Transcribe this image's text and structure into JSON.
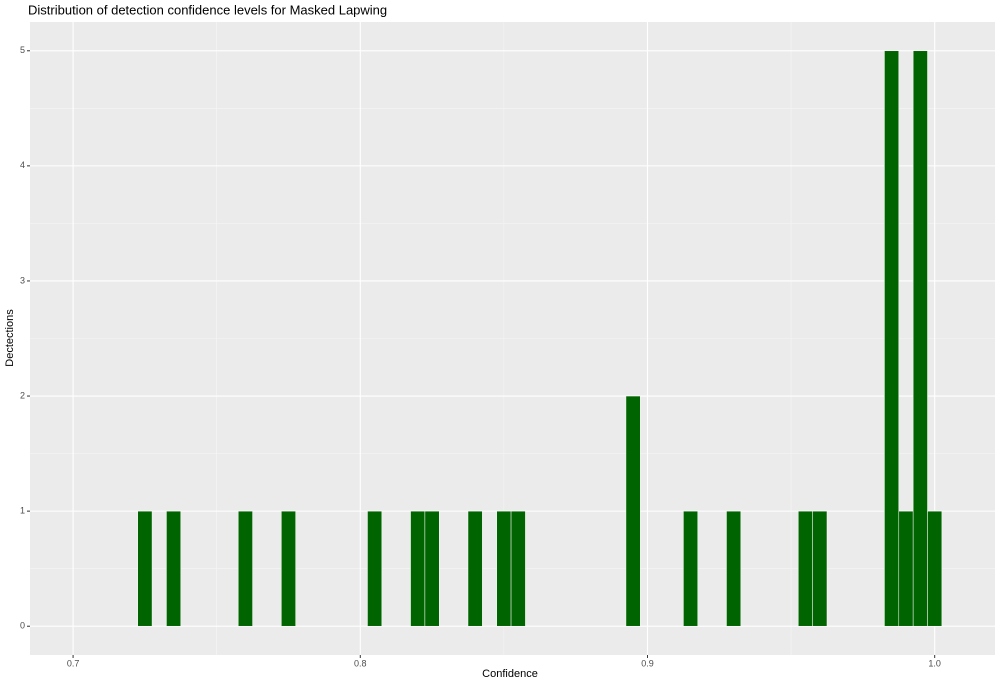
{
  "chart_data": {
    "type": "histogram",
    "title": "Distribution of detection confidence levels for Masked Lapwing",
    "x_label": "Confidence",
    "y_label": "Dectections",
    "bins": [
      0.7225,
      0.7275,
      0.7325,
      0.7375,
      0.7425,
      0.7475,
      0.7525,
      0.7575,
      0.7625,
      0.7675,
      0.7725,
      0.7775,
      0.7825,
      0.7875,
      0.7925,
      0.7975,
      0.8025,
      0.8075,
      0.8125,
      0.8175,
      0.8225,
      0.8275,
      0.8325,
      0.8375,
      0.8425,
      0.8475,
      0.8525,
      0.8575,
      0.8625,
      0.8675,
      0.8725,
      0.8775,
      0.8825,
      0.8875,
      0.8925,
      0.8975,
      0.9025,
      0.9075,
      0.9125,
      0.9175,
      0.9225,
      0.9275,
      0.9325,
      0.9375,
      0.9425,
      0.9475,
      0.9525,
      0.9575,
      0.9625,
      0.9675,
      0.9725,
      0.9775,
      0.9825,
      0.9875,
      0.9925,
      0.9975,
      1.0025
    ],
    "values": [
      1,
      0,
      1,
      0,
      0,
      0,
      0,
      1,
      0,
      0,
      1,
      0,
      0,
      0,
      0,
      0,
      1,
      0,
      0,
      1,
      1,
      0,
      0,
      1,
      0,
      1,
      1,
      0,
      0,
      0,
      0,
      0,
      0,
      0,
      2,
      0,
      0,
      0,
      1,
      0,
      0,
      1,
      0,
      0,
      0,
      0,
      1,
      1,
      0,
      0,
      0,
      0,
      5,
      1,
      5,
      1
    ],
    "color": "#006400",
    "xlim": [
      0.685,
      1.021
    ],
    "xticks": [
      0.7,
      0.8,
      0.9,
      {
        "value": 1,
        "label": "1.0"
      }
    ],
    "ylim": [
      -0.25,
      5.25
    ],
    "yticks": [
      0,
      1,
      2,
      3,
      4,
      5
    ],
    "grid": true
  }
}
